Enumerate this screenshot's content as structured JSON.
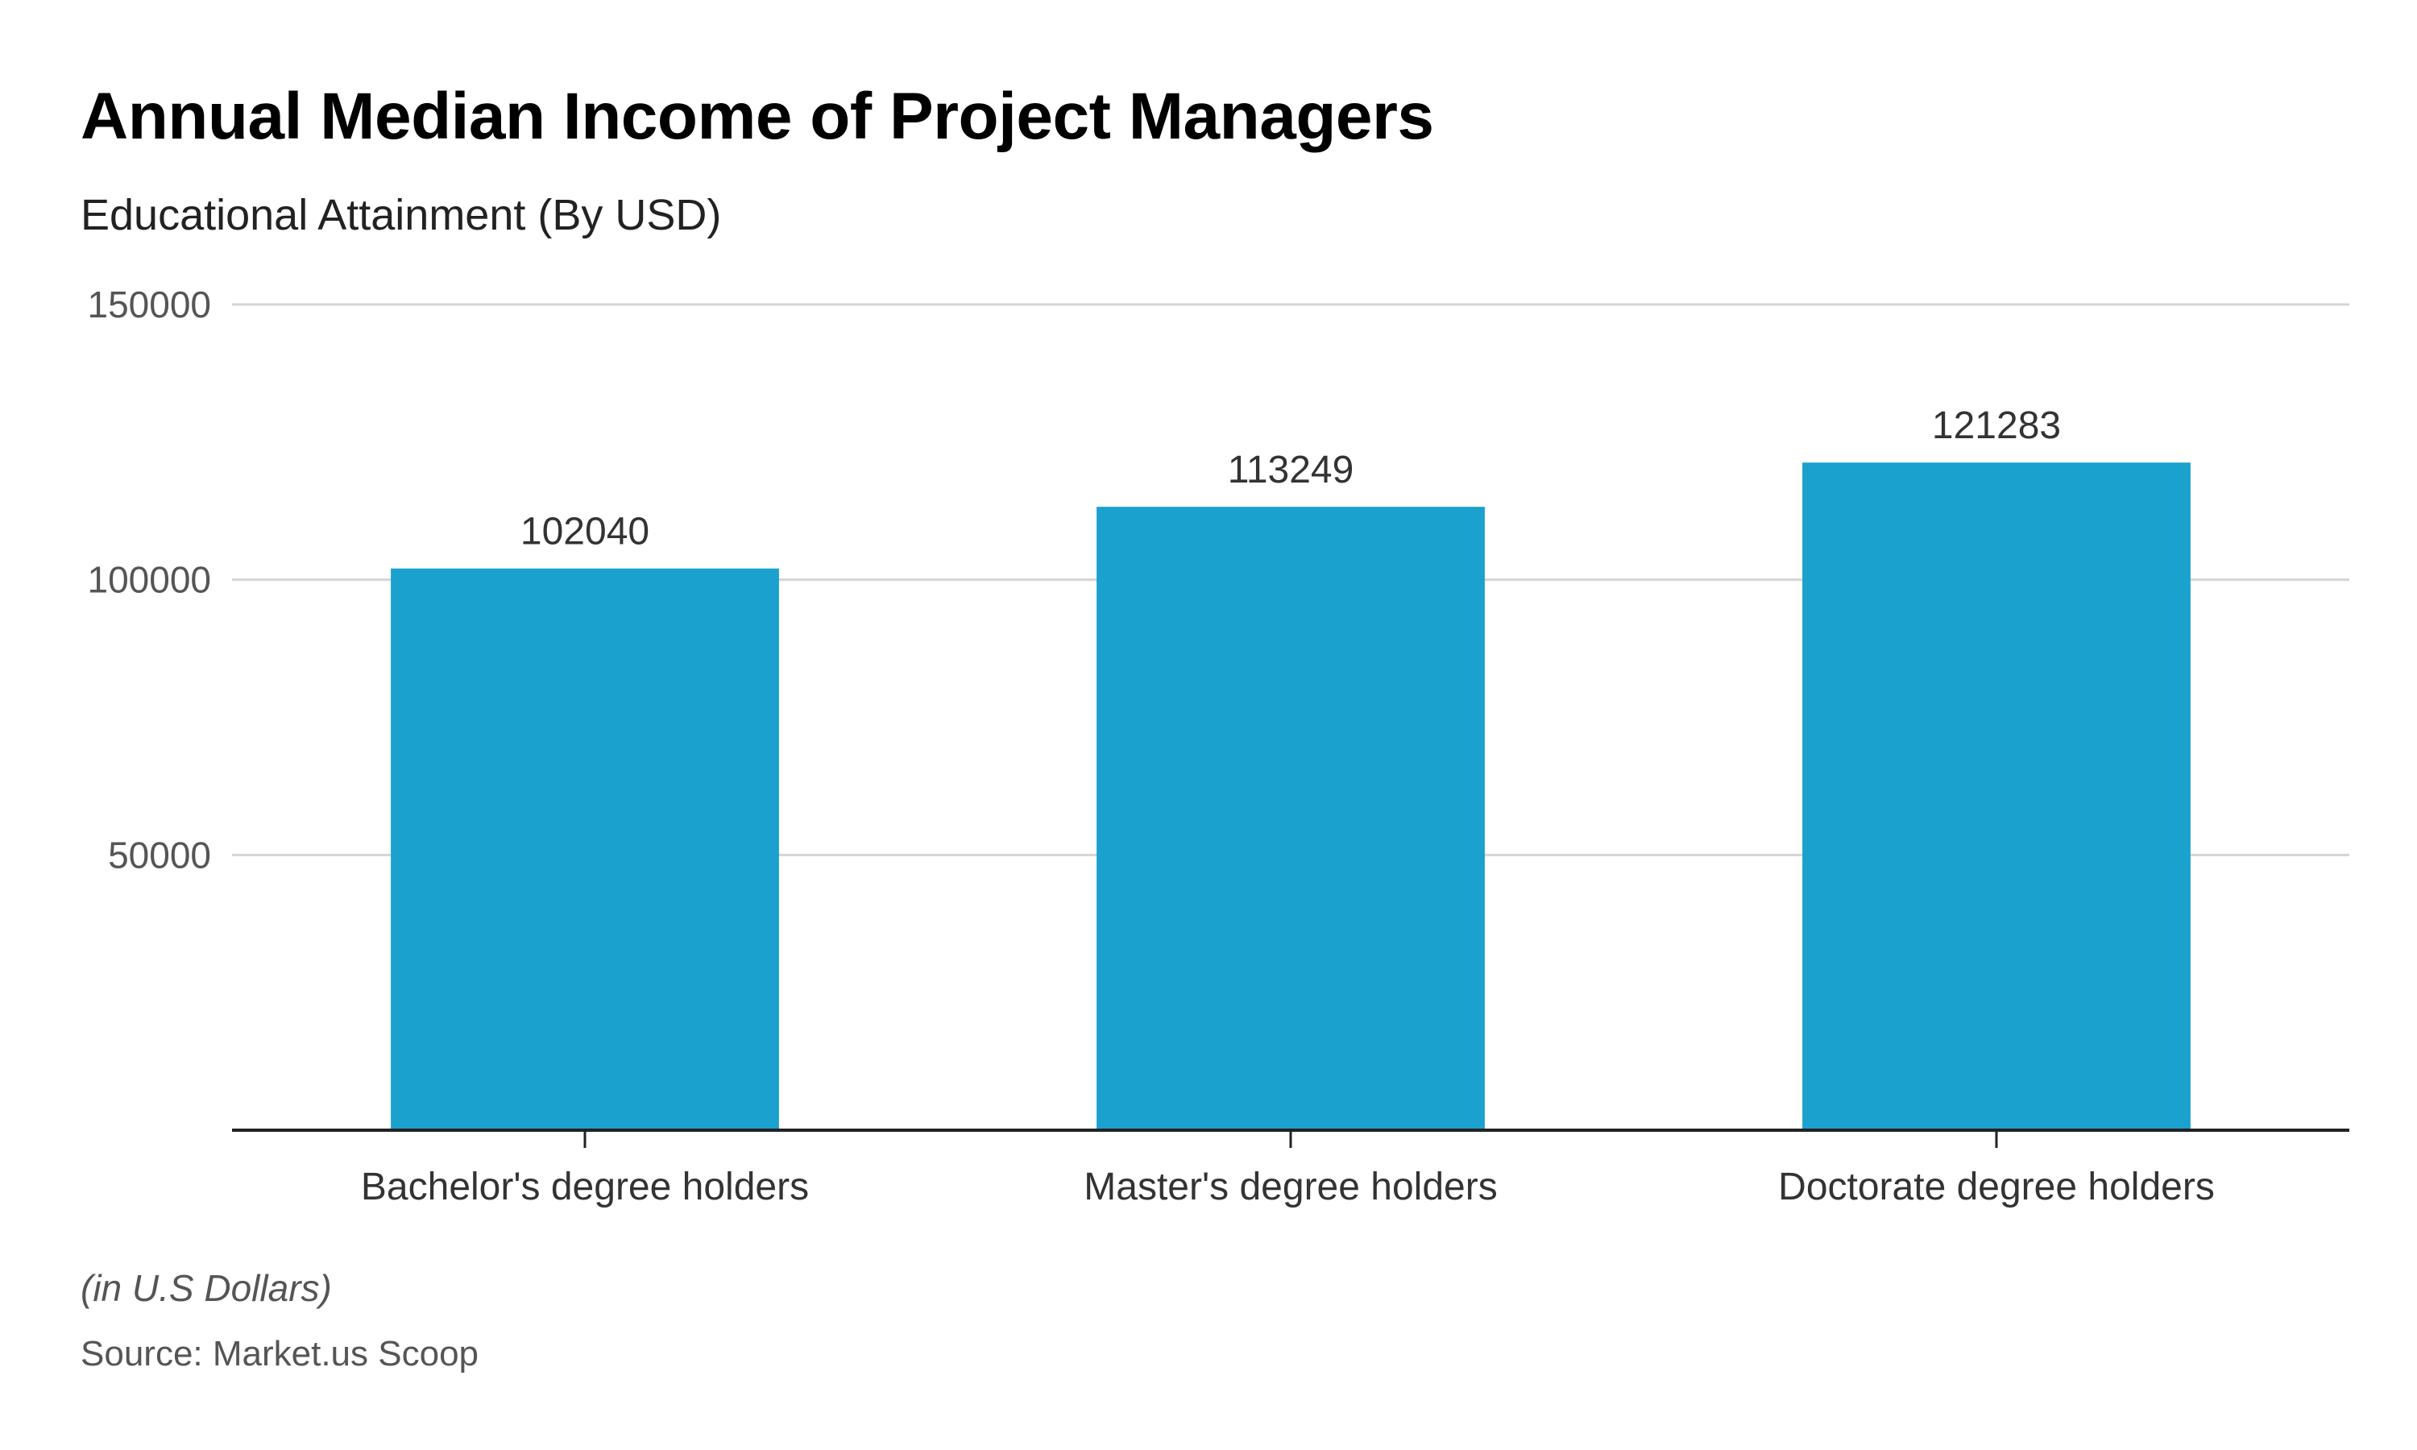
{
  "chart_data": {
    "type": "bar",
    "title": "Annual Median Income of Project Managers",
    "subtitle": "Educational Attainment (By USD)",
    "categories": [
      "Bachelor's degree holders",
      "Master's degree holders",
      "Doctorate degree holders"
    ],
    "values": [
      102040,
      113249,
      121283
    ],
    "data_labels": [
      "102040",
      "113249",
      "121283"
    ],
    "y_ticks": [
      50000,
      100000,
      150000
    ],
    "y_tick_labels": [
      "50000",
      "100000",
      "150000"
    ],
    "ylim": [
      0,
      150000
    ],
    "xlabel": "",
    "ylabel": "",
    "grid": true,
    "bar_color": "#1aa1cd",
    "note": "(in U.S Dollars)",
    "source": "Source: Market.us Scoop"
  }
}
